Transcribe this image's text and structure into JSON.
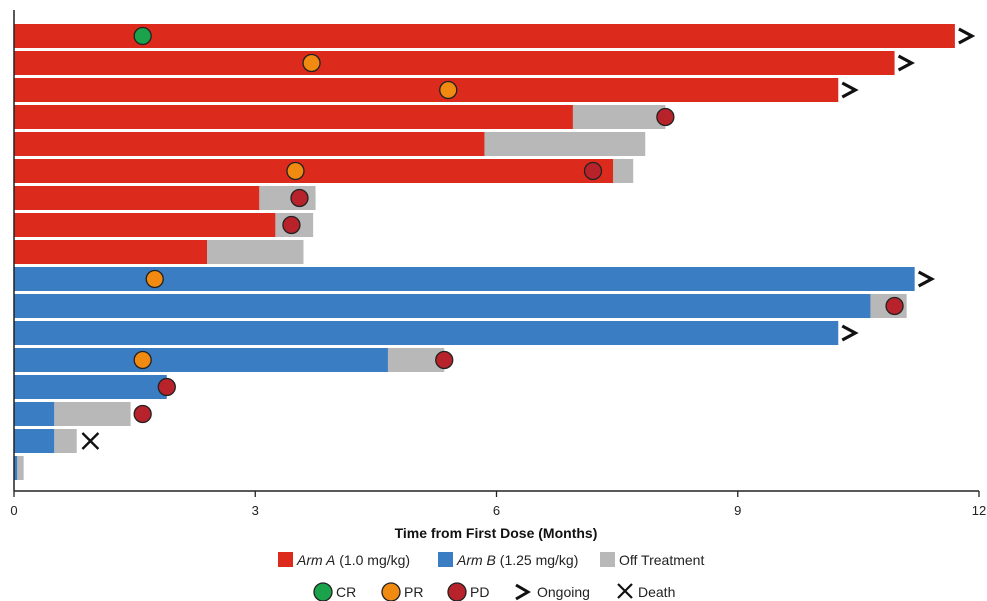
{
  "chart_data": {
    "type": "bar",
    "orientation": "horizontal",
    "subtype": "swimmer-plot",
    "title": "",
    "xlabel": "Time from First Dose (Months)",
    "ylabel": "",
    "xlim": [
      0,
      12
    ],
    "xticks": [
      "0",
      "3",
      "6",
      "9",
      "12"
    ],
    "grid": false,
    "colors": {
      "arm_a": "#dc2a1c",
      "arm_b": "#3a7dc2",
      "off_treatment": "#b8b8b8",
      "CR": "#1aa34a",
      "PR": "#f08a10",
      "PD": "#b8222a",
      "ongoing": "#111111",
      "death": "#111111"
    },
    "patients": [
      {
        "arm": "A",
        "on_treatment": 11.7,
        "off_end": null,
        "events": [
          {
            "type": "CR",
            "t": 1.6
          }
        ],
        "ongoing": true,
        "death": null
      },
      {
        "arm": "A",
        "on_treatment": 10.95,
        "off_end": null,
        "events": [
          {
            "type": "PR",
            "t": 3.7
          }
        ],
        "ongoing": true,
        "death": null
      },
      {
        "arm": "A",
        "on_treatment": 10.25,
        "off_end": null,
        "events": [
          {
            "type": "PR",
            "t": 5.4
          }
        ],
        "ongoing": true,
        "death": null
      },
      {
        "arm": "A",
        "on_treatment": 6.95,
        "off_end": 8.1,
        "events": [
          {
            "type": "PD",
            "t": 8.1
          }
        ],
        "ongoing": false,
        "death": null
      },
      {
        "arm": "A",
        "on_treatment": 5.85,
        "off_end": 7.85,
        "events": [],
        "ongoing": false,
        "death": null
      },
      {
        "arm": "A",
        "on_treatment": 7.45,
        "off_end": 7.7,
        "events": [
          {
            "type": "PR",
            "t": 3.5
          },
          {
            "type": "PD",
            "t": 7.2
          }
        ],
        "ongoing": false,
        "death": null
      },
      {
        "arm": "A",
        "on_treatment": 3.05,
        "off_end": 3.75,
        "events": [
          {
            "type": "PD",
            "t": 3.55
          }
        ],
        "ongoing": false,
        "death": null
      },
      {
        "arm": "A",
        "on_treatment": 3.25,
        "off_end": 3.72,
        "events": [
          {
            "type": "PD",
            "t": 3.45
          }
        ],
        "ongoing": false,
        "death": null
      },
      {
        "arm": "A",
        "on_treatment": 2.4,
        "off_end": 3.6,
        "events": [],
        "ongoing": false,
        "death": null
      },
      {
        "arm": "B",
        "on_treatment": 11.2,
        "off_end": null,
        "events": [
          {
            "type": "PR",
            "t": 1.75
          }
        ],
        "ongoing": true,
        "death": null
      },
      {
        "arm": "B",
        "on_treatment": 10.65,
        "off_end": 11.1,
        "events": [
          {
            "type": "PD",
            "t": 10.95
          }
        ],
        "ongoing": false,
        "death": null
      },
      {
        "arm": "B",
        "on_treatment": 10.25,
        "off_end": null,
        "events": [],
        "ongoing": true,
        "death": null
      },
      {
        "arm": "B",
        "on_treatment": 4.65,
        "off_end": 5.35,
        "events": [
          {
            "type": "PR",
            "t": 1.6
          },
          {
            "type": "PD",
            "t": 5.35
          }
        ],
        "ongoing": false,
        "death": null
      },
      {
        "arm": "B",
        "on_treatment": 1.9,
        "off_end": null,
        "events": [
          {
            "type": "PD",
            "t": 1.9
          }
        ],
        "ongoing": false,
        "death": null
      },
      {
        "arm": "B",
        "on_treatment": 0.5,
        "off_end": 1.45,
        "events": [
          {
            "type": "PD",
            "t": 1.6
          }
        ],
        "ongoing": false,
        "death": null
      },
      {
        "arm": "B",
        "on_treatment": 0.5,
        "off_end": 0.78,
        "events": [],
        "ongoing": false,
        "death": 0.95
      },
      {
        "arm": "B",
        "on_treatment": 0.04,
        "off_end": 0.12,
        "events": [],
        "ongoing": false,
        "death": null
      }
    ],
    "legend": {
      "placement": "bottom",
      "arm_a_name": "Arm A",
      "arm_a_dose": " (1.0 mg/kg)",
      "arm_b_name": "Arm B",
      "arm_b_dose": " (1.25 mg/kg)",
      "off_treatment": "Off Treatment",
      "cr": "CR",
      "pr": "PR",
      "pd": "PD",
      "ongoing": "Ongoing",
      "death": "Death"
    }
  }
}
